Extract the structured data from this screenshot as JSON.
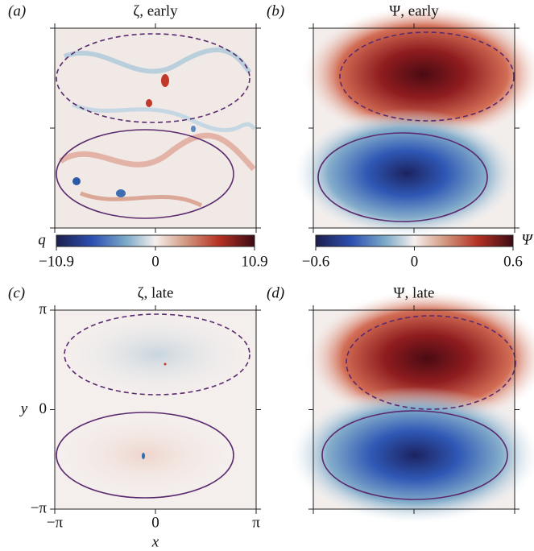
{
  "chart_data": [
    {
      "type": "heatmap",
      "panel": "(a)",
      "title": "ζ, early",
      "colorbar_label": "q",
      "clim": [
        -10.9,
        10.9
      ],
      "cticks": [
        {
          "value": -10.9,
          "label": "−10.9"
        },
        0,
        10.9
      ]
    },
    {
      "type": "heatmap",
      "panel": "(b)",
      "title": "Ψ, early",
      "colorbar_label": "Ψ",
      "clim": [
        -0.6,
        0.6
      ],
      "cticks": [
        {
          "value": -0.6,
          "label": "−0.6"
        },
        0,
        0.6
      ]
    },
    {
      "type": "heatmap",
      "panel": "(c)",
      "title": "ζ, late",
      "xlabel": "x",
      "ylabel": "y",
      "xlim": [
        -3.14159,
        3.14159
      ],
      "ylim": [
        -3.14159,
        3.14159
      ],
      "xticks": [
        {
          "value": -3.14159,
          "label": "−π"
        },
        0,
        {
          "value": 3.14159,
          "label": "π"
        }
      ],
      "yticks": [
        {
          "value": -3.14159,
          "label": "−π"
        },
        0,
        {
          "value": 3.14159,
          "label": "π"
        }
      ]
    },
    {
      "type": "heatmap",
      "panel": "(d)",
      "title": "Ψ, late"
    }
  ]
}
